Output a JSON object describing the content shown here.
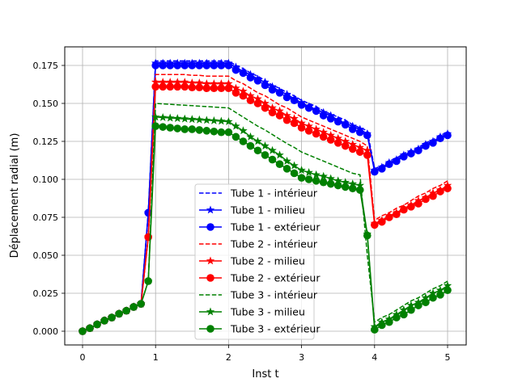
{
  "chart_data": {
    "type": "line",
    "title": "",
    "xlabel": "Inst t",
    "ylabel": "Déplacement radial (m)",
    "xlim": [
      -0.25,
      5.25
    ],
    "ylim": [
      -0.009,
      0.185
    ],
    "xticks": [
      "0",
      "1",
      "2",
      "3",
      "4",
      "5"
    ],
    "xtick_values": [
      0,
      1,
      2,
      3,
      4,
      5
    ],
    "yticks": [
      "0.000",
      "0.025",
      "0.050",
      "0.075",
      "0.100",
      "0.125",
      "0.150",
      "0.175"
    ],
    "ytick_values": [
      0,
      0.025,
      0.05,
      0.075,
      0.1,
      0.125,
      0.15,
      0.175
    ],
    "grid": true,
    "legend_position": "bottom-center",
    "x": [
      0,
      0.1,
      0.2,
      0.3,
      0.4,
      0.5,
      0.6,
      0.7,
      0.8,
      0.9,
      1.0,
      1.1,
      1.2,
      1.3,
      1.4,
      1.5,
      1.6,
      1.7,
      1.8,
      1.9,
      2.0,
      2.1,
      2.2,
      2.3,
      2.4,
      2.5,
      2.6,
      2.7,
      2.8,
      2.9,
      3.0,
      3.1,
      3.2,
      3.3,
      3.4,
      3.5,
      3.6,
      3.7,
      3.8,
      3.9,
      4.0,
      4.1,
      4.2,
      4.3,
      4.4,
      4.5,
      4.6,
      4.7,
      4.8,
      4.9,
      5.0
    ],
    "series": [
      {
        "name": "Tube 1 - intérieur",
        "color": "#0000ff",
        "style": "dashed",
        "marker": "none",
        "values": [
          0,
          0.002,
          0.0045,
          0.007,
          0.009,
          0.0115,
          0.0135,
          0.016,
          0.018,
          0.078,
          0.178,
          0.178,
          0.178,
          0.178,
          0.178,
          0.178,
          0.178,
          0.178,
          0.178,
          0.178,
          0.178,
          0.175,
          0.173,
          0.17,
          0.168,
          0.165,
          0.162,
          0.16,
          0.157,
          0.155,
          0.152,
          0.15,
          0.148,
          0.145,
          0.143,
          0.141,
          0.139,
          0.136,
          0.134,
          0.132,
          0.107,
          0.109,
          0.112,
          0.114,
          0.117,
          0.119,
          0.121,
          0.124,
          0.126,
          0.129,
          0.131
        ]
      },
      {
        "name": "Tube 1 - milieu",
        "color": "#0000ff",
        "style": "solid",
        "marker": "star",
        "values": [
          0,
          0.002,
          0.0045,
          0.007,
          0.009,
          0.0115,
          0.0135,
          0.016,
          0.018,
          0.078,
          0.1765,
          0.1765,
          0.1765,
          0.1765,
          0.1765,
          0.1765,
          0.1765,
          0.1765,
          0.1765,
          0.1765,
          0.1765,
          0.174,
          0.171,
          0.169,
          0.166,
          0.164,
          0.161,
          0.158,
          0.156,
          0.153,
          0.1505,
          0.148,
          0.146,
          0.144,
          0.142,
          0.139,
          0.137,
          0.135,
          0.133,
          0.13,
          0.106,
          0.108,
          0.111,
          0.113,
          0.116,
          0.118,
          0.12,
          0.123,
          0.125,
          0.128,
          0.13
        ]
      },
      {
        "name": "Tube 1 - extérieur",
        "color": "#0000ff",
        "style": "solid",
        "marker": "circle",
        "values": [
          0,
          0.002,
          0.0045,
          0.007,
          0.009,
          0.0115,
          0.0135,
          0.016,
          0.018,
          0.078,
          0.175,
          0.175,
          0.175,
          0.175,
          0.175,
          0.175,
          0.175,
          0.175,
          0.175,
          0.175,
          0.175,
          0.172,
          0.17,
          0.167,
          0.165,
          0.162,
          0.159,
          0.157,
          0.154,
          0.152,
          0.149,
          0.147,
          0.145,
          0.142,
          0.14,
          0.138,
          0.136,
          0.133,
          0.131,
          0.129,
          0.105,
          0.107,
          0.11,
          0.112,
          0.115,
          0.117,
          0.119,
          0.122,
          0.124,
          0.127,
          0.129
        ]
      },
      {
        "name": "Tube 2 - intérieur",
        "color": "#ff0000",
        "style": "dashed",
        "marker": "none",
        "values": [
          0,
          0.002,
          0.0045,
          0.007,
          0.009,
          0.0115,
          0.0135,
          0.016,
          0.018,
          0.062,
          0.169,
          0.169,
          0.169,
          0.169,
          0.169,
          0.1685,
          0.1685,
          0.168,
          0.168,
          0.168,
          0.168,
          0.165,
          0.163,
          0.16,
          0.157,
          0.155,
          0.152,
          0.149,
          0.147,
          0.144,
          0.141,
          0.139,
          0.137,
          0.135,
          0.133,
          0.131,
          0.129,
          0.127,
          0.125,
          0.122,
          0.073,
          0.076,
          0.078,
          0.081,
          0.083,
          0.086,
          0.089,
          0.091,
          0.094,
          0.096,
          0.099
        ]
      },
      {
        "name": "Tube 2 - milieu",
        "color": "#ff0000",
        "style": "solid",
        "marker": "star",
        "values": [
          0,
          0.002,
          0.0045,
          0.007,
          0.009,
          0.0115,
          0.0135,
          0.016,
          0.018,
          0.062,
          0.164,
          0.164,
          0.164,
          0.164,
          0.164,
          0.1635,
          0.1635,
          0.163,
          0.163,
          0.163,
          0.163,
          0.16,
          0.158,
          0.155,
          0.153,
          0.15,
          0.147,
          0.145,
          0.142,
          0.14,
          0.137,
          0.135,
          0.133,
          0.131,
          0.129,
          0.127,
          0.125,
          0.123,
          0.121,
          0.119,
          0.071,
          0.073,
          0.076,
          0.078,
          0.081,
          0.083,
          0.086,
          0.088,
          0.091,
          0.093,
          0.096
        ]
      },
      {
        "name": "Tube 2 - extérieur",
        "color": "#ff0000",
        "style": "solid",
        "marker": "circle",
        "values": [
          0,
          0.002,
          0.0045,
          0.007,
          0.009,
          0.0115,
          0.0135,
          0.016,
          0.018,
          0.062,
          0.161,
          0.161,
          0.161,
          0.161,
          0.161,
          0.1605,
          0.1605,
          0.16,
          0.16,
          0.16,
          0.16,
          0.157,
          0.155,
          0.152,
          0.15,
          0.147,
          0.144,
          0.142,
          0.139,
          0.137,
          0.134,
          0.132,
          0.13,
          0.128,
          0.126,
          0.124,
          0.122,
          0.12,
          0.118,
          0.116,
          0.07,
          0.072,
          0.075,
          0.077,
          0.08,
          0.082,
          0.084,
          0.087,
          0.089,
          0.092,
          0.094
        ]
      },
      {
        "name": "Tube 3 - intérieur",
        "color": "#008000",
        "style": "dashed",
        "marker": "none",
        "values": [
          0,
          0.002,
          0.0045,
          0.007,
          0.009,
          0.0115,
          0.0135,
          0.016,
          0.018,
          0.033,
          0.15,
          0.1497,
          0.1494,
          0.1491,
          0.1488,
          0.1485,
          0.1482,
          0.1479,
          0.1476,
          0.1473,
          0.147,
          0.144,
          0.141,
          0.138,
          0.135,
          0.1325,
          0.1295,
          0.1265,
          0.1235,
          0.121,
          0.118,
          0.116,
          0.114,
          0.112,
          0.11,
          0.108,
          0.106,
          0.104,
          0.103,
          0.05,
          0.006,
          0.009,
          0.011,
          0.014,
          0.017,
          0.02,
          0.022,
          0.025,
          0.028,
          0.03,
          0.033
        ]
      },
      {
        "name": "Tube 3 - milieu",
        "color": "#008000",
        "style": "solid",
        "marker": "star",
        "values": [
          0,
          0.002,
          0.0045,
          0.007,
          0.009,
          0.0115,
          0.0135,
          0.016,
          0.018,
          0.033,
          0.141,
          0.1407,
          0.1404,
          0.1401,
          0.1398,
          0.1395,
          0.1392,
          0.1389,
          0.1386,
          0.1383,
          0.138,
          0.135,
          0.132,
          0.128,
          0.125,
          0.122,
          0.119,
          0.116,
          0.112,
          0.109,
          0.106,
          0.1045,
          0.103,
          0.102,
          0.1005,
          0.099,
          0.098,
          0.097,
          0.096,
          0.064,
          0.003,
          0.006,
          0.008,
          0.011,
          0.014,
          0.017,
          0.019,
          0.022,
          0.025,
          0.027,
          0.03
        ]
      },
      {
        "name": "Tube 3 - extérieur",
        "color": "#008000",
        "style": "solid",
        "marker": "circle",
        "values": [
          0,
          0.002,
          0.0045,
          0.007,
          0.009,
          0.0115,
          0.0135,
          0.016,
          0.018,
          0.033,
          0.135,
          0.1345,
          0.134,
          0.1335,
          0.133,
          0.133,
          0.1325,
          0.132,
          0.1315,
          0.131,
          0.131,
          0.128,
          0.125,
          0.122,
          0.119,
          0.116,
          0.113,
          0.11,
          0.107,
          0.104,
          0.101,
          0.1,
          0.099,
          0.098,
          0.097,
          0.096,
          0.095,
          0.094,
          0.093,
          0.063,
          0.001,
          0.004,
          0.006,
          0.009,
          0.011,
          0.014,
          0.017,
          0.019,
          0.022,
          0.024,
          0.027
        ]
      }
    ]
  }
}
